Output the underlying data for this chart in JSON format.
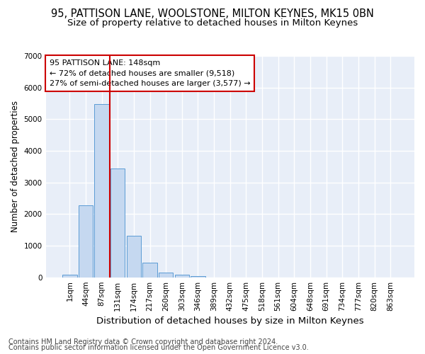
{
  "title_line1": "95, PATTISON LANE, WOOLSTONE, MILTON KEYNES, MK15 0BN",
  "title_line2": "Size of property relative to detached houses in Milton Keynes",
  "xlabel": "Distribution of detached houses by size in Milton Keynes",
  "ylabel": "Number of detached properties",
  "footer_line1": "Contains HM Land Registry data © Crown copyright and database right 2024.",
  "footer_line2": "Contains public sector information licensed under the Open Government Licence v3.0.",
  "bar_labels": [
    "1sqm",
    "44sqm",
    "87sqm",
    "131sqm",
    "174sqm",
    "217sqm",
    "260sqm",
    "303sqm",
    "346sqm",
    "389sqm",
    "432sqm",
    "475sqm",
    "518sqm",
    "561sqm",
    "604sqm",
    "648sqm",
    "691sqm",
    "734sqm",
    "777sqm",
    "820sqm",
    "863sqm"
  ],
  "bar_values": [
    75,
    2280,
    5480,
    3450,
    1310,
    470,
    155,
    80,
    45,
    0,
    0,
    0,
    0,
    0,
    0,
    0,
    0,
    0,
    0,
    0,
    0
  ],
  "bar_color": "#c5d8f0",
  "bar_edge_color": "#5b9bd5",
  "background_color": "#e8eef8",
  "grid_color": "#ffffff",
  "vline_color": "#cc0000",
  "vline_x": 2.5,
  "annotation_line1": "95 PATTISON LANE: 148sqm",
  "annotation_line2": "← 72% of detached houses are smaller (9,518)",
  "annotation_line3": "27% of semi-detached houses are larger (3,577) →",
  "annotation_box_facecolor": "#ffffff",
  "annotation_box_edgecolor": "#cc0000",
  "ylim_max": 7000,
  "yticks": [
    0,
    1000,
    2000,
    3000,
    4000,
    5000,
    6000,
    7000
  ],
  "title_fontsize": 10.5,
  "subtitle_fontsize": 9.5,
  "xlabel_fontsize": 9.5,
  "ylabel_fontsize": 8.5,
  "tick_fontsize": 7.5,
  "annotation_fontsize": 8,
  "footer_fontsize": 7
}
